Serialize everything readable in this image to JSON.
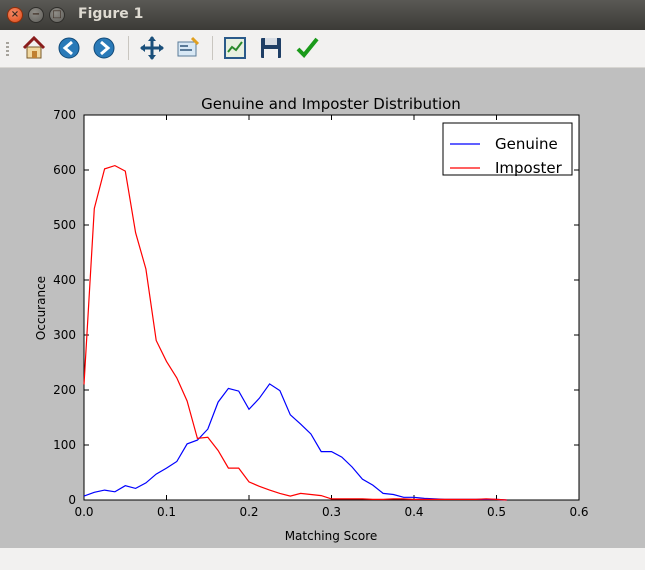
{
  "window": {
    "title": "Figure 1",
    "buttons": {
      "close": "×",
      "minimize": "−",
      "maximize": "□"
    }
  },
  "toolbar": {
    "items": [
      {
        "name": "home-button",
        "icon": "home-icon"
      },
      {
        "name": "back-button",
        "icon": "arrow-left-icon"
      },
      {
        "name": "forward-button",
        "icon": "arrow-right-icon"
      },
      {
        "name": "pan-button",
        "icon": "move-icon"
      },
      {
        "name": "zoom-button",
        "icon": "zoom-rect-icon"
      },
      {
        "name": "subplots-button",
        "icon": "subplots-icon"
      },
      {
        "name": "save-button",
        "icon": "floppy-icon"
      },
      {
        "name": "edit-button",
        "icon": "checkmark-icon"
      }
    ]
  },
  "chart_data": {
    "type": "line",
    "title": "Genuine and Imposter Distribution",
    "xlabel": "Matching Score",
    "ylabel": "Occurance",
    "xlim": [
      0.0,
      0.6
    ],
    "ylim": [
      0,
      700
    ],
    "xticks": [
      "0.0",
      "0.1",
      "0.2",
      "0.3",
      "0.4",
      "0.5",
      "0.6"
    ],
    "yticks": [
      "0",
      "100",
      "200",
      "300",
      "400",
      "500",
      "600",
      "700"
    ],
    "grid": false,
    "legend_position": "top-right",
    "series": [
      {
        "name": "Genuine",
        "color": "#0000ff",
        "x": [
          0.0,
          0.0125,
          0.025,
          0.0375,
          0.05,
          0.0625,
          0.075,
          0.0875,
          0.1,
          0.1125,
          0.125,
          0.1375,
          0.15,
          0.1625,
          0.175,
          0.1875,
          0.2,
          0.2125,
          0.225,
          0.2375,
          0.25,
          0.2625,
          0.275,
          0.2875,
          0.3,
          0.3125,
          0.325,
          0.3375,
          0.35,
          0.3625,
          0.375,
          0.3875,
          0.4,
          0.4125,
          0.425,
          0.4375,
          0.45,
          0.4625,
          0.475,
          0.4875,
          0.5,
          0.5125
        ],
        "y": [
          7,
          14,
          18,
          15,
          26,
          21,
          31,
          47,
          58,
          70,
          102,
          109,
          129,
          178,
          203,
          198,
          165,
          185,
          211,
          199,
          155,
          138,
          120,
          88,
          88,
          78,
          60,
          38,
          27,
          12,
          10,
          5,
          5,
          3,
          2,
          1,
          1,
          1,
          1,
          1,
          1,
          0
        ]
      },
      {
        "name": "Imposter",
        "color": "#ff0000",
        "x": [
          0.0,
          0.0125,
          0.025,
          0.0375,
          0.05,
          0.0625,
          0.075,
          0.0875,
          0.1,
          0.1125,
          0.125,
          0.1375,
          0.15,
          0.1625,
          0.175,
          0.1875,
          0.2,
          0.2125,
          0.225,
          0.2375,
          0.25,
          0.2625,
          0.275,
          0.2875,
          0.3,
          0.3125,
          0.325,
          0.3375,
          0.35,
          0.3625,
          0.375,
          0.3875,
          0.4,
          0.4125,
          0.425,
          0.4375,
          0.45,
          0.4625,
          0.475,
          0.4875,
          0.5,
          0.5125
        ],
        "y": [
          210,
          530,
          602,
          608,
          598,
          486,
          420,
          290,
          252,
          222,
          180,
          112,
          114,
          90,
          58,
          58,
          33,
          25,
          18,
          12,
          7,
          12,
          10,
          8,
          2,
          2,
          2,
          2,
          1,
          1,
          2,
          2,
          1,
          1,
          1,
          1,
          1,
          1,
          1,
          2,
          1,
          0
        ]
      }
    ]
  }
}
